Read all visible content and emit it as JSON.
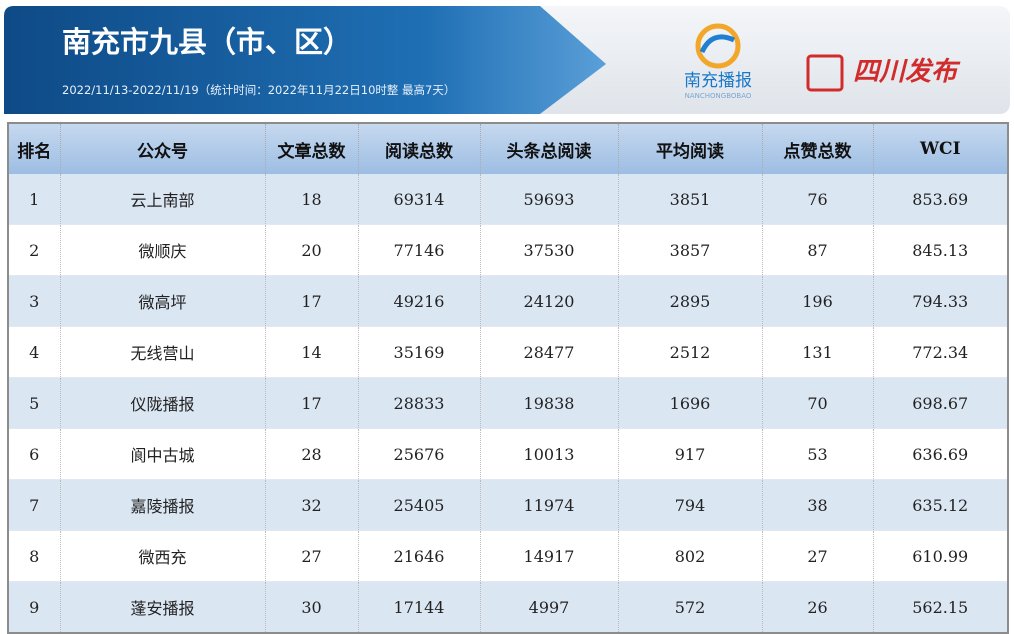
{
  "header": {
    "title": "南充市九县（市、区）",
    "subtitle": "2022/11/13-2022/11/19（统计时间：2022年11月22日10时整 最高7天）",
    "logo_text": "南充播报",
    "logo_subtext": "NANCHONGBOBAO",
    "brand": "四川发布"
  },
  "table": {
    "columns": [
      "排名",
      "公众号",
      "文章总数",
      "阅读总数",
      "头条总阅读",
      "平均阅读",
      "点赞总数",
      "WCI"
    ],
    "rows": [
      [
        1,
        "云上南部",
        18,
        69314,
        59693,
        3851,
        76,
        853.69
      ],
      [
        2,
        "微顺庆",
        20,
        77146,
        37530,
        3857,
        87,
        845.13
      ],
      [
        3,
        "微高坪",
        17,
        49216,
        24120,
        2895,
        196,
        794.33
      ],
      [
        4,
        "无线营山",
        14,
        35169,
        28477,
        2512,
        131,
        772.34
      ],
      [
        5,
        "仪陇播报",
        17,
        28833,
        19838,
        1696,
        70,
        698.67
      ],
      [
        6,
        "阆中古城",
        28,
        25676,
        10013,
        917,
        53,
        636.69
      ],
      [
        7,
        "嘉陵播报",
        32,
        25405,
        11974,
        794,
        38,
        635.12
      ],
      [
        8,
        "微西充",
        27,
        21646,
        14917,
        802,
        27,
        610.99
      ],
      [
        9,
        "蓬安播报",
        30,
        17144,
        4997,
        572,
        26,
        562.15
      ]
    ]
  }
}
